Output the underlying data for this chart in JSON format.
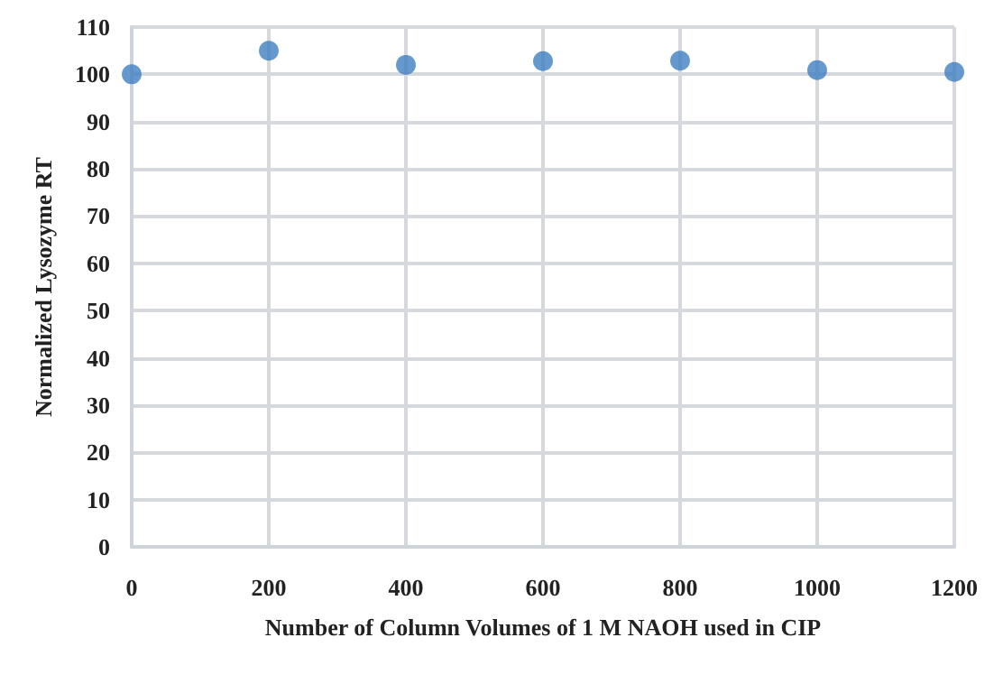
{
  "chart_data": {
    "type": "scatter",
    "xlabel": "Number of Column Volumes of 1 M NAOH used in CIP",
    "ylabel": "Normalized Lysozyme RT",
    "x": [
      0,
      200,
      400,
      600,
      800,
      1000,
      1200
    ],
    "series": [
      {
        "color": "#3f7fc1",
        "values": [
          100,
          105,
          102,
          102.8,
          102.9,
          100.9,
          100.5
        ]
      }
    ],
    "xlim": [
      0,
      1200
    ],
    "xticks": [
      0,
      200,
      400,
      600,
      800,
      1000,
      1200
    ],
    "ylim": [
      0,
      110
    ],
    "yticks": [
      0,
      10,
      20,
      30,
      40,
      50,
      60,
      70,
      80,
      90,
      100,
      110
    ],
    "grid": true,
    "marker": "circle"
  }
}
